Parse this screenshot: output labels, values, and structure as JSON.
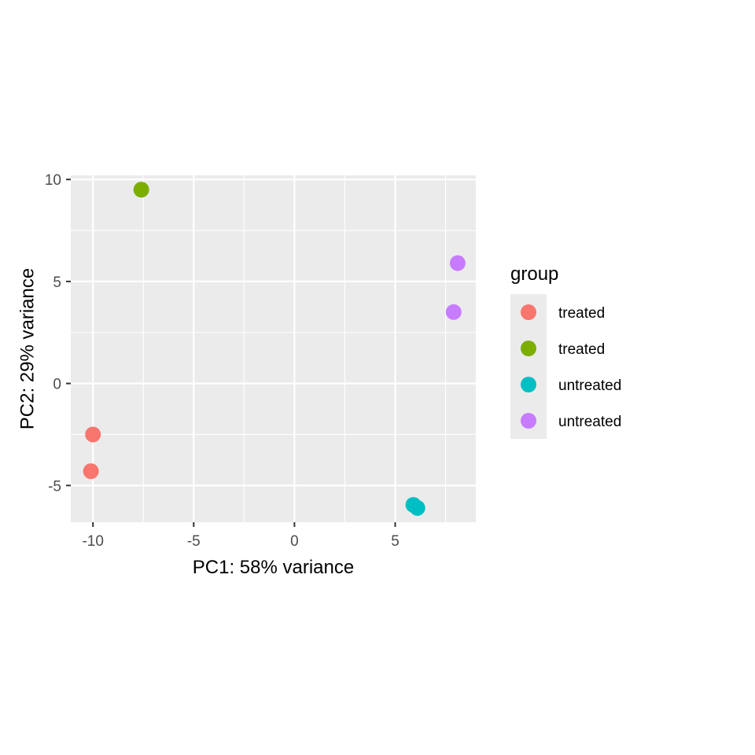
{
  "chart_data": {
    "type": "scatter",
    "xlabel": "PC1: 58% variance",
    "ylabel": "PC2: 29% variance",
    "xlim": [
      -11.1,
      9.0
    ],
    "ylim": [
      -6.8,
      10.2
    ],
    "x_ticks": [
      -10,
      -5,
      0,
      5
    ],
    "y_ticks": [
      -5,
      0,
      5,
      10
    ],
    "grid": true,
    "legend_title": "group",
    "legend_position": "right",
    "series": [
      {
        "name": "treated",
        "color": "#F8766D",
        "points": [
          [
            -10.0,
            -2.5
          ],
          [
            -10.1,
            -4.3
          ]
        ]
      },
      {
        "name": "treated",
        "color": "#7CAE00",
        "points": [
          [
            -7.6,
            9.5
          ]
        ]
      },
      {
        "name": "untreated",
        "color": "#00BFC4",
        "points": [
          [
            5.9,
            -5.95
          ],
          [
            6.1,
            -6.1
          ]
        ]
      },
      {
        "name": "untreated",
        "color": "#C77CFF",
        "points": [
          [
            8.1,
            5.9
          ],
          [
            7.9,
            3.5
          ]
        ]
      }
    ]
  }
}
